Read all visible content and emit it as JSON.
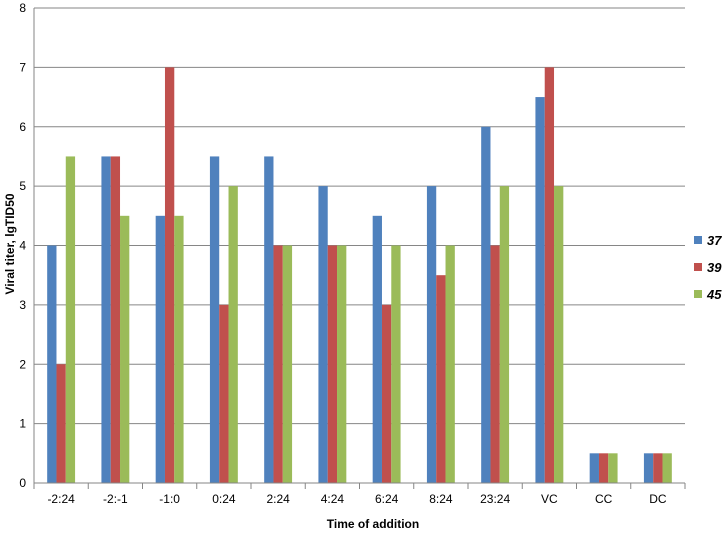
{
  "chart_data": {
    "type": "bar",
    "title": "",
    "xlabel": "Time of addition",
    "ylabel": "Viral titer, lgTID50",
    "ylim": [
      0,
      8
    ],
    "yticks": [
      0,
      1,
      2,
      3,
      4,
      5,
      6,
      7,
      8
    ],
    "grid": true,
    "legend_position": "right",
    "categories": [
      "-2:24",
      "-2:-1",
      "-1:0",
      "0:24",
      "2:24",
      "4:24",
      "6:24",
      "8:24",
      "23:24",
      "VC",
      "CC",
      "DC"
    ],
    "series": [
      {
        "name": "37",
        "color": "#4F81BD",
        "values": [
          4,
          5.5,
          4.5,
          5.5,
          5.5,
          5,
          4.5,
          5,
          6,
          6.5,
          0.5,
          0.5
        ]
      },
      {
        "name": "39",
        "color": "#C0504D",
        "values": [
          2,
          5.5,
          7,
          3,
          4,
          4,
          3,
          3.5,
          4,
          7,
          0.5,
          0.5
        ]
      },
      {
        "name": "45",
        "color": "#9BBB59",
        "values": [
          5.5,
          4.5,
          4.5,
          5,
          4,
          4,
          4,
          4,
          5,
          5,
          0.5,
          0.5
        ]
      }
    ]
  }
}
